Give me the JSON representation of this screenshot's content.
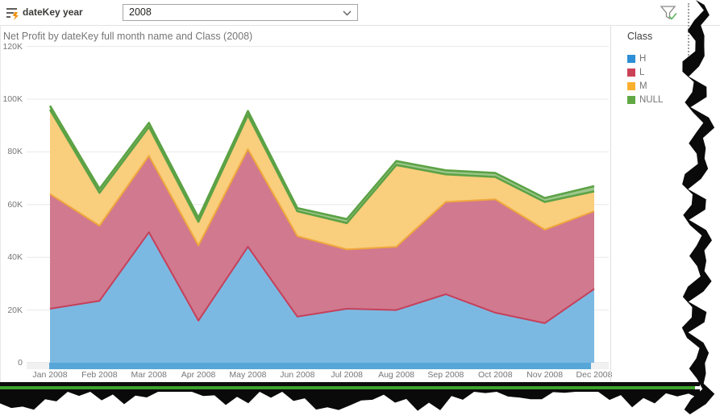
{
  "slicer": {
    "label": "dateKey year",
    "value": "2008"
  },
  "icons": {
    "slicer": "slicer-lines-bolt-icon",
    "dropdown": "chevron-down-icon",
    "filter": "filter-funnel-check-icon"
  },
  "legend": {
    "title": "Class"
  },
  "chart_data": {
    "type": "area",
    "stacked": true,
    "title": "Net Profit by dateKey full month name and Class (2008)",
    "xlabel": "",
    "ylabel": "",
    "ylim": [
      0,
      120000
    ],
    "grid": true,
    "legend_position": "right",
    "y_ticks": [
      "0",
      "20K",
      "40K",
      "60K",
      "80K",
      "100K",
      "120K"
    ],
    "categories": [
      "Jan 2008",
      "Feb 2008",
      "Mar 2008",
      "Apr 2008",
      "May 2008",
      "Jun 2008",
      "Jul 2008",
      "Aug 2008",
      "Sep 2008",
      "Oct 2008",
      "Nov 2008",
      "Dec 2008"
    ],
    "series": [
      {
        "name": "H",
        "color": "#2d8fd5",
        "stroke": "#2e8fd0",
        "fill": "#7cb9e2",
        "values": [
          20500,
          23500,
          49500,
          16000,
          44000,
          17500,
          20500,
          20000,
          26000,
          19000,
          15000,
          28000
        ]
      },
      {
        "name": "L",
        "color": "#cb4257",
        "stroke": "#c5405a",
        "fill": "#d0798f",
        "values": [
          43500,
          28500,
          29000,
          28500,
          37000,
          30500,
          22500,
          24000,
          35000,
          43000,
          35500,
          29500
        ]
      },
      {
        "name": "M",
        "color": "#fbb02d",
        "stroke": "#efa73c",
        "fill": "#f9ce7d",
        "values": [
          32000,
          12500,
          11000,
          9000,
          13000,
          9500,
          10000,
          31000,
          10500,
          8500,
          10500,
          7500
        ]
      },
      {
        "name": "NULL",
        "color": "#61a844",
        "stroke": "#5ca245",
        "fill": "#9cc78b",
        "values": [
          1500,
          1500,
          1500,
          1500,
          1500,
          1200,
          1500,
          1500,
          1500,
          1500,
          1500,
          2000
        ]
      }
    ]
  }
}
